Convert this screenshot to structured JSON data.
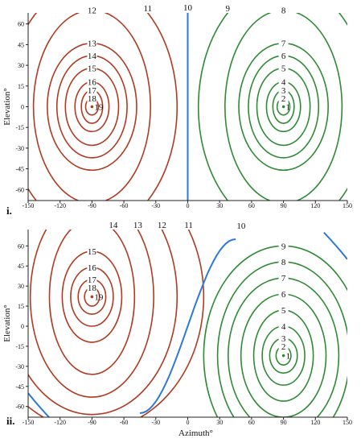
{
  "colors": {
    "red": "#b03a22",
    "green": "#2f8a35",
    "blue": "#2f79d6"
  },
  "panels": [
    {
      "id": "i.",
      "xlabel": "",
      "ylabel": "Elevation°",
      "x_ticks": [
        "-150",
        "-120",
        "-90",
        "-60",
        "-30",
        "0",
        "30",
        "60",
        "90",
        "120",
        "150"
      ],
      "y_ticks": [
        "60",
        "45",
        "30",
        "15",
        "0",
        "-15",
        "-30",
        "-45",
        "-60"
      ],
      "red_center": [
        -90,
        0
      ],
      "green_center": [
        90,
        0
      ],
      "red_contours": [
        {
          "label": "19",
          "rx": 0,
          "ry": 0
        },
        {
          "label": "18",
          "rx": 6,
          "ry": 6
        },
        {
          "label": "17",
          "rx": 10,
          "ry": 12
        },
        {
          "label": "16",
          "rx": 16,
          "ry": 18
        },
        {
          "label": "15",
          "rx": 25,
          "ry": 28
        },
        {
          "label": "14",
          "rx": 33,
          "ry": 37
        },
        {
          "label": "13",
          "rx": 42,
          "ry": 46
        },
        {
          "label": "12",
          "rx": 55,
          "ry": 70
        },
        {
          "label": "11",
          "rx": 80,
          "ry": 90
        }
      ],
      "green_contours": [
        {
          "label": "1",
          "rx": 0,
          "ry": 0
        },
        {
          "label": "2",
          "rx": 6,
          "ry": 6
        },
        {
          "label": "3",
          "rx": 10,
          "ry": 12
        },
        {
          "label": "4",
          "rx": 16,
          "ry": 18
        },
        {
          "label": "5",
          "rx": 25,
          "ry": 28
        },
        {
          "label": "6",
          "rx": 33,
          "ry": 37
        },
        {
          "label": "7",
          "rx": 42,
          "ry": 46
        },
        {
          "label": "8",
          "rx": 55,
          "ry": 70
        },
        {
          "label": "9",
          "rx": 80,
          "ry": 90
        }
      ],
      "blue_label": "10"
    },
    {
      "id": "ii.",
      "xlabel": "Azimuth°",
      "ylabel": "Elevation°",
      "x_ticks": [
        "-150",
        "-120",
        "-90",
        "-60",
        "-30",
        "0",
        "30",
        "60",
        "90",
        "120",
        "150"
      ],
      "y_ticks": [
        "60",
        "45",
        "30",
        "15",
        "0",
        "-15",
        "-30",
        "-45",
        "-60"
      ],
      "red_center": [
        -90,
        22
      ],
      "green_center": [
        90,
        -22
      ],
      "red_contours": [
        {
          "label": "19",
          "rx": 0,
          "ry": 0
        },
        {
          "label": "18",
          "rx": 7,
          "ry": 7
        },
        {
          "label": "17",
          "rx": 13,
          "ry": 13
        },
        {
          "label": "16",
          "rx": 20,
          "ry": 22
        },
        {
          "label": "15",
          "rx": 28,
          "ry": 34
        },
        {
          "label": "14",
          "rx": 40,
          "ry": 58
        },
        {
          "label": "13",
          "rx": 58,
          "ry": 75
        },
        {
          "label": "12",
          "rx": 80,
          "ry": 88
        },
        {
          "label": "11",
          "rx": 105,
          "ry": 100
        }
      ],
      "green_contours": [
        {
          "label": "1",
          "rx": 0,
          "ry": 0
        },
        {
          "label": "2",
          "rx": 7,
          "ry": 7
        },
        {
          "label": "3",
          "rx": 13,
          "ry": 13
        },
        {
          "label": "4",
          "rx": 20,
          "ry": 22
        },
        {
          "label": "5",
          "rx": 28,
          "ry": 34
        },
        {
          "label": "6",
          "rx": 40,
          "ry": 46
        },
        {
          "label": "7",
          "rx": 52,
          "ry": 58
        },
        {
          "label": "8",
          "rx": 62,
          "ry": 70
        },
        {
          "label": "9",
          "rx": 75,
          "ry": 82
        }
      ],
      "blue_label": "10"
    }
  ]
}
